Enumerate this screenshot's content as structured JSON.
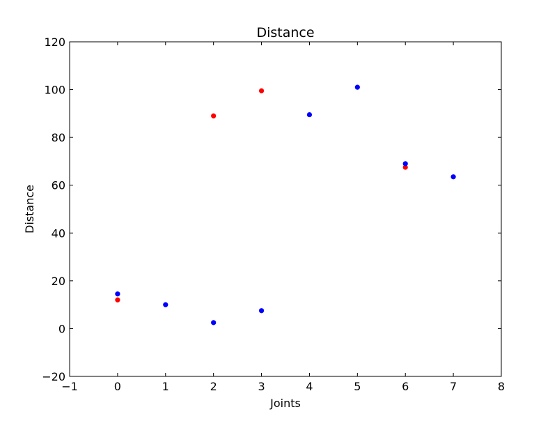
{
  "chart_data": {
    "type": "scatter",
    "title": "Distance",
    "xlabel": "Joints",
    "ylabel": "Distance",
    "xlim": [
      -1,
      8
    ],
    "ylim": [
      -20,
      120
    ],
    "xticks": [
      -1,
      0,
      1,
      2,
      3,
      4,
      5,
      6,
      7,
      8
    ],
    "yticks": [
      -20,
      0,
      20,
      40,
      60,
      80,
      100,
      120
    ],
    "xtick_labels": [
      "−1",
      "0",
      "1",
      "2",
      "3",
      "4",
      "5",
      "6",
      "7",
      "8"
    ],
    "ytick_labels": [
      "−20",
      "0",
      "20",
      "40",
      "60",
      "80",
      "100",
      "120"
    ],
    "grid": false,
    "legend": "none",
    "series": [
      {
        "color": "#ff0000",
        "points": [
          {
            "x": 0,
            "y": 12
          },
          {
            "x": 2,
            "y": 89
          },
          {
            "x": 3,
            "y": 99.5
          },
          {
            "x": 6,
            "y": 67.5
          }
        ]
      },
      {
        "color": "#0000ff",
        "points": [
          {
            "x": 0,
            "y": 14.5
          },
          {
            "x": 1,
            "y": 10
          },
          {
            "x": 2,
            "y": 2.5
          },
          {
            "x": 3,
            "y": 7.5
          },
          {
            "x": 4,
            "y": 89.5
          },
          {
            "x": 5,
            "y": 101
          },
          {
            "x": 6,
            "y": 69
          },
          {
            "x": 7,
            "y": 63.5
          }
        ]
      }
    ]
  }
}
